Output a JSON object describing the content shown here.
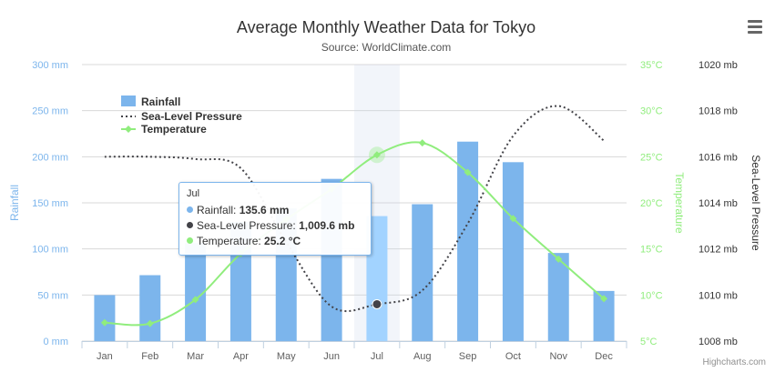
{
  "chart_data": {
    "type": "combo",
    "title": "Average Monthly Weather Data for Tokyo",
    "subtitle": "Source: WorldClimate.com",
    "categories": [
      "Jan",
      "Feb",
      "Mar",
      "Apr",
      "May",
      "Jun",
      "Jul",
      "Aug",
      "Sep",
      "Oct",
      "Nov",
      "Dec"
    ],
    "series": [
      {
        "name": "Rainfall",
        "type": "column",
        "axis": "rainfall",
        "color": "#7cb5ec",
        "values": [
          49.9,
          71.5,
          106.4,
          129.2,
          144.0,
          176.0,
          135.6,
          148.5,
          216.4,
          194.1,
          95.6,
          54.4
        ]
      },
      {
        "name": "Sea-Level Pressure",
        "type": "spline",
        "dash": true,
        "axis": "pressure",
        "color": "#434348",
        "values": [
          1016,
          1016,
          1015.9,
          1015.5,
          1012.3,
          1009.5,
          1009.6,
          1010.2,
          1013.1,
          1016.9,
          1018.2,
          1016.7
        ]
      },
      {
        "name": "Temperature",
        "type": "spline",
        "axis": "temperature",
        "color": "#90ed7d",
        "values": [
          7.0,
          6.9,
          9.5,
          14.5,
          18.2,
          21.5,
          25.2,
          26.5,
          23.3,
          18.3,
          13.9,
          9.6
        ]
      }
    ],
    "axes": {
      "rainfall": {
        "title": "Rainfall",
        "min": 0,
        "max": 300,
        "ticks": [
          "0 mm",
          "50 mm",
          "100 mm",
          "150 mm",
          "200 mm",
          "250 mm",
          "300 mm"
        ],
        "color": "#7cb5ec"
      },
      "temperature": {
        "title": "Temperature",
        "min": 5,
        "max": 35,
        "ticks": [
          "5°C",
          "10°C",
          "15°C",
          "20°C",
          "25°C",
          "30°C",
          "35°C"
        ],
        "color": "#90ed7d"
      },
      "pressure": {
        "title": "Sea-Level Pressure",
        "min": 1008,
        "max": 1020,
        "ticks": [
          "1008 mb",
          "1010 mb",
          "1012 mb",
          "1014 mb",
          "1016 mb",
          "1018 mb",
          "1020 mb"
        ],
        "color": "#434348"
      }
    },
    "grid": true,
    "legend_position": "top-left, inside plot",
    "hovered_category_index": 6
  },
  "tooltip": {
    "header": "Jul",
    "rows": [
      {
        "label": "Rainfall: ",
        "value": "135.6 mm",
        "color": "#7cb5ec"
      },
      {
        "label": "Sea-Level Pressure: ",
        "value": "1,009.6 mb",
        "color": "#434348"
      },
      {
        "label": "Temperature: ",
        "value": "25.2 °C",
        "color": "#90ed7d"
      }
    ]
  },
  "menu": {
    "icon": "hamburger-menu-icon"
  },
  "credits": "Highcharts.com"
}
